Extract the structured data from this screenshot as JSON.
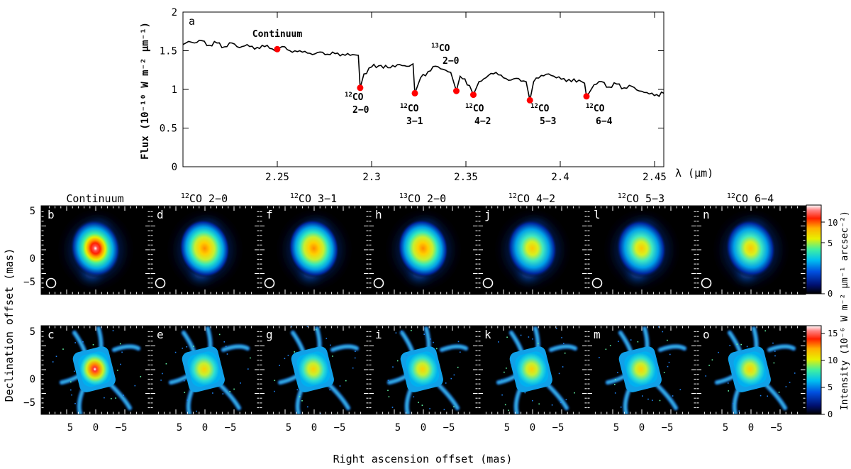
{
  "figure": {
    "panel_a_letter": "a",
    "continuum_label": "Continuum",
    "x_axis_label": "λ (μm)",
    "y_axis_label": "Flux (10⁻¹⁰ W m⁻² μm⁻¹)",
    "y_ticks": [
      "0",
      "0.5",
      "1",
      "1.5",
      "2"
    ],
    "x_ticks": [
      "2.25",
      "2.3",
      "2.35",
      "2.4",
      "2.45"
    ],
    "line_labels": [
      {
        "iso": "12",
        "mol": "CO",
        "trans": "2−0"
      },
      {
        "iso": "12",
        "mol": "CO",
        "trans": "3−1"
      },
      {
        "iso": "13",
        "mol": "CO",
        "trans": "2−0"
      },
      {
        "iso": "12",
        "mol": "CO",
        "trans": "4−2"
      },
      {
        "iso": "12",
        "mol": "CO",
        "trans": "5−3"
      },
      {
        "iso": "12",
        "mol": "CO",
        "trans": "6−4"
      }
    ],
    "columns": [
      {
        "title_iso": "",
        "title_rest": "Continuum",
        "top_letter": "b",
        "bottom_letter": "c"
      },
      {
        "title_iso": "12",
        "title_rest": "CO 2−0",
        "top_letter": "d",
        "bottom_letter": "e"
      },
      {
        "title_iso": "12",
        "title_rest": "CO 3−1",
        "top_letter": "f",
        "bottom_letter": "g"
      },
      {
        "title_iso": "13",
        "title_rest": "CO 2−0",
        "top_letter": "h",
        "bottom_letter": "i"
      },
      {
        "title_iso": "12",
        "title_rest": "CO 4−2",
        "top_letter": "j",
        "bottom_letter": "k"
      },
      {
        "title_iso": "12",
        "title_rest": "CO 5−3",
        "top_letter": "l",
        "bottom_letter": "m"
      },
      {
        "title_iso": "12",
        "title_rest": "CO 6−4",
        "top_letter": "n",
        "bottom_letter": "o"
      }
    ],
    "image_y_ticks": [
      "5",
      "0",
      "−5"
    ],
    "image_x_ticks": [
      "5",
      "0",
      "−5"
    ],
    "image_y_label": "Declination offset (mas)",
    "image_x_label": "Right ascension offset (mas)",
    "colorbar_top_ticks": [
      "10",
      "5",
      "0"
    ],
    "colorbar_top_label": "μm⁻¹ arcsec⁻²)",
    "colorbar_bottom_ticks": [
      "15",
      "10",
      "5",
      "0"
    ],
    "colorbar_bottom_label": "Intensity (10⁻⁶ W m⁻²",
    "colors": {
      "marker": "#ff0000",
      "line": "#000000"
    }
  },
  "chart_data": {
    "type": "line",
    "title": "",
    "xlabel": "λ (μm)",
    "ylabel": "Flux (10⁻¹⁰ W m⁻² μm⁻¹)",
    "xlim": [
      2.2,
      2.455
    ],
    "ylim": [
      0,
      2
    ],
    "x": [
      2.2,
      2.203,
      2.206,
      2.21,
      2.214,
      2.218,
      2.222,
      2.226,
      2.23,
      2.234,
      2.238,
      2.242,
      2.246,
      2.25,
      2.254,
      2.258,
      2.262,
      2.266,
      2.27,
      2.274,
      2.278,
      2.282,
      2.286,
      2.29,
      2.293,
      2.294,
      2.296,
      2.3,
      2.305,
      2.31,
      2.315,
      2.32,
      2.322,
      2.323,
      2.326,
      2.33,
      2.334,
      2.338,
      2.342,
      2.345,
      2.347,
      2.352,
      2.354,
      2.357,
      2.362,
      2.366,
      2.37,
      2.374,
      2.378,
      2.382,
      2.384,
      2.386,
      2.39,
      2.394,
      2.398,
      2.402,
      2.406,
      2.41,
      2.413,
      2.414,
      2.418,
      2.422,
      2.426,
      2.43,
      2.434,
      2.438,
      2.442,
      2.446,
      2.45,
      2.455
    ],
    "series": [
      {
        "name": "Spectrum",
        "values": [
          1.58,
          1.62,
          1.6,
          1.63,
          1.57,
          1.6,
          1.55,
          1.6,
          1.54,
          1.58,
          1.52,
          1.57,
          1.53,
          1.52,
          1.55,
          1.48,
          1.5,
          1.47,
          1.46,
          1.48,
          1.45,
          1.47,
          1.44,
          1.45,
          1.44,
          1.02,
          1.2,
          1.29,
          1.31,
          1.28,
          1.32,
          1.3,
          1.33,
          0.95,
          1.15,
          1.23,
          1.3,
          1.26,
          1.22,
          0.98,
          1.17,
          1.05,
          0.93,
          1.1,
          1.18,
          1.22,
          1.15,
          1.12,
          1.14,
          1.1,
          0.86,
          1.1,
          1.18,
          1.2,
          1.15,
          1.14,
          1.1,
          1.12,
          1.08,
          0.91,
          1.06,
          1.1,
          1.03,
          1.07,
          1.02,
          1.04,
          0.98,
          0.96,
          0.92,
          0.95
        ]
      },
      {
        "name": "Markers",
        "points": [
          [
            2.25,
            1.52
          ],
          [
            2.294,
            1.02
          ],
          [
            2.323,
            0.95
          ],
          [
            2.345,
            0.98
          ],
          [
            2.354,
            0.93
          ],
          [
            2.384,
            0.86
          ],
          [
            2.414,
            0.91
          ]
        ]
      }
    ]
  }
}
